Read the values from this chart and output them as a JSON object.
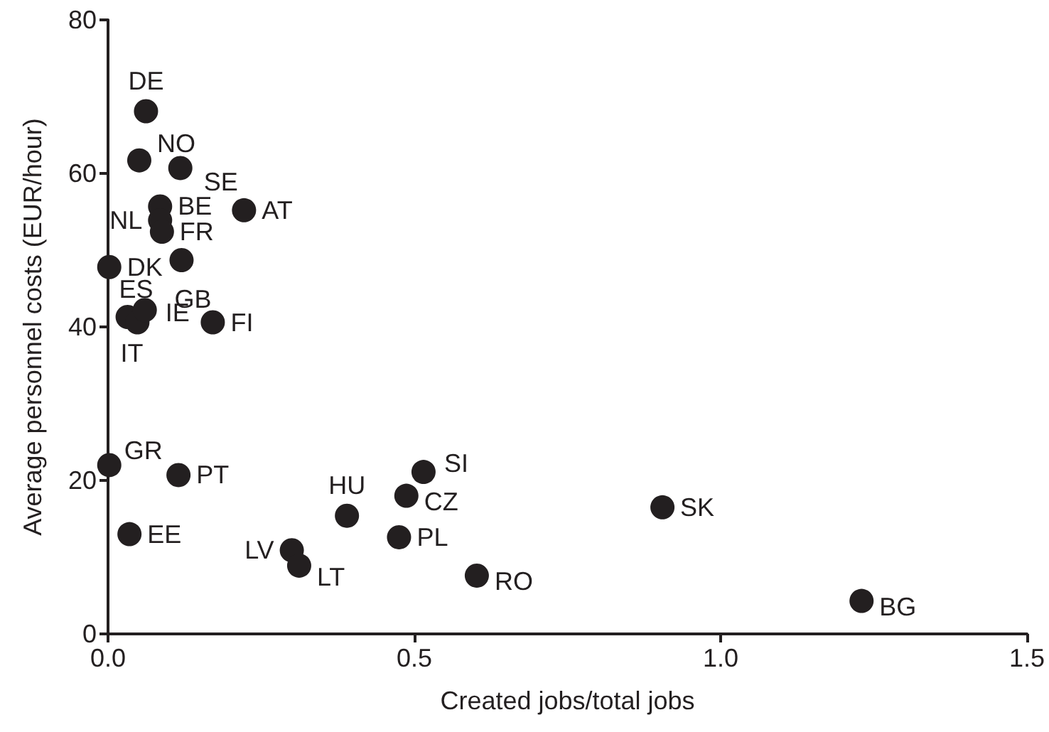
{
  "chart_data": {
    "type": "scatter",
    "xlabel": "Created jobs/total jobs",
    "ylabel": "Average personnel costs (EUR/hour)",
    "xlim": [
      0,
      1.5
    ],
    "xticks": [
      {
        "value": 0,
        "label": "0.0"
      },
      {
        "value": 0.5,
        "label": "0.5"
      },
      {
        "value": 1,
        "label": "1.0"
      },
      {
        "value": 1.5,
        "label": "1.5"
      }
    ],
    "ylim": [
      0,
      80
    ],
    "yticks": [
      0,
      20,
      40,
      60,
      80
    ],
    "grid": false,
    "marker": "circle",
    "series": [
      {
        "color": "#231f20",
        "x": [
          0.062,
          0.051,
          0.118,
          0.085,
          0.085,
          0.088,
          0.222,
          0.002,
          0.12,
          0.032,
          0.048,
          0.06,
          0.171,
          0.002,
          0.115,
          0.035,
          0.3,
          0.312,
          0.39,
          0.515,
          0.487,
          0.475,
          0.602,
          0.905,
          1.23
        ],
        "values": [
          68.1,
          61.7,
          60.7,
          55.7,
          53.9,
          52.4,
          55.2,
          47.8,
          48.7,
          41.3,
          40.6,
          42.2,
          40.6,
          22.0,
          20.7,
          13.0,
          10.9,
          8.9,
          15.4,
          21.1,
          18.0,
          12.6,
          7.6,
          16.5,
          4.3
        ],
        "value_labels": [
          "DE",
          "NO",
          "SE",
          "BE",
          "NL",
          "FR",
          "AT",
          "DK",
          "GB",
          "ES",
          "IT",
          "IE",
          "FI",
          "GR",
          "PT",
          "EE",
          "LV",
          "LT",
          "HU",
          "SI",
          "CZ",
          "PL",
          "RO",
          "SK",
          "BG"
        ]
      }
    ]
  }
}
